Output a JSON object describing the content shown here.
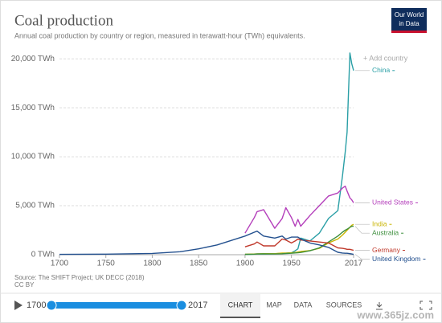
{
  "chart_data": {
    "type": "line",
    "title": "Coal production",
    "subtitle": "Annual coal production by country or region, measured in terawatt-hour (TWh) equivalents.",
    "source": "Source: The SHIFT Project; UK DECC (2018)",
    "license": "CC BY",
    "add_country": "+ Add country",
    "x": [
      1700,
      1750,
      1800,
      1830,
      1850,
      1870,
      1900,
      1910,
      1913,
      1920,
      1932,
      1940,
      1944,
      1950,
      1954,
      1957,
      1960,
      1970,
      1980,
      1990,
      2000,
      2005,
      2008,
      2010,
      2013,
      2015,
      2017
    ],
    "xlim": [
      1700,
      2017
    ],
    "xticks": [
      1700,
      1750,
      1800,
      1850,
      1900,
      1950,
      2017
    ],
    "ylim": [
      0,
      21000
    ],
    "yticks": [
      {
        "value": 0,
        "label": "0 TWh"
      },
      {
        "value": 5000,
        "label": "5,000 TWh"
      },
      {
        "value": 10000,
        "label": "10,000 TWh"
      },
      {
        "value": 15000,
        "label": "15,000 TWh"
      },
      {
        "value": 20000,
        "label": "20,000 TWh"
      }
    ],
    "grid": true,
    "series": [
      {
        "name": "China",
        "color": "#2a9fa6",
        "values": [
          null,
          null,
          null,
          null,
          null,
          null,
          20,
          60,
          70,
          80,
          100,
          150,
          150,
          200,
          400,
          600,
          1700,
          1400,
          2200,
          3700,
          4500,
          8000,
          10500,
          12500,
          20600,
          19500,
          18800
        ]
      },
      {
        "name": "United States",
        "color": "#b43fbb",
        "values": [
          null,
          null,
          null,
          null,
          null,
          null,
          2200,
          3800,
          4400,
          4600,
          2700,
          3700,
          4800,
          3800,
          2900,
          3600,
          2900,
          4000,
          5000,
          6000,
          6300,
          6800,
          7000,
          6500,
          5800,
          5600,
          5300
        ]
      },
      {
        "name": "India",
        "color": "#c9b400",
        "values": [
          null,
          null,
          null,
          null,
          null,
          null,
          40,
          70,
          90,
          110,
          110,
          160,
          160,
          200,
          230,
          270,
          330,
          430,
          650,
          1200,
          1600,
          2000,
          2300,
          2500,
          2800,
          3000,
          3100
        ]
      },
      {
        "name": "Australia",
        "color": "#3d8f3d",
        "values": [
          null,
          null,
          null,
          null,
          null,
          null,
          40,
          60,
          70,
          80,
          70,
          100,
          120,
          150,
          180,
          200,
          230,
          400,
          700,
          1300,
          1900,
          2300,
          2500,
          2600,
          2800,
          2900,
          2900
        ]
      },
      {
        "name": "Germany",
        "color": "#c0392b",
        "values": [
          null,
          null,
          null,
          null,
          null,
          null,
          800,
          1100,
          1300,
          900,
          900,
          1600,
          1500,
          1200,
          1400,
          1600,
          1500,
          1400,
          1300,
          1200,
          700,
          650,
          600,
          550,
          550,
          500,
          450
        ]
      },
      {
        "name": "United Kingdom",
        "color": "#24518f",
        "values": [
          30,
          60,
          130,
          300,
          600,
          1000,
          1900,
          2300,
          2400,
          1900,
          1700,
          1900,
          1600,
          1800,
          1800,
          1800,
          1600,
          1200,
          1000,
          750,
          250,
          170,
          150,
          150,
          110,
          70,
          30
        ]
      }
    ]
  },
  "logo": {
    "lines": [
      "Our World",
      "in Data"
    ]
  },
  "controls": {
    "start": "1700",
    "end": "2017",
    "tabs": [
      "CHART",
      "MAP",
      "DATA",
      "SOURCES"
    ]
  },
  "watermark": "www.365jz.com"
}
